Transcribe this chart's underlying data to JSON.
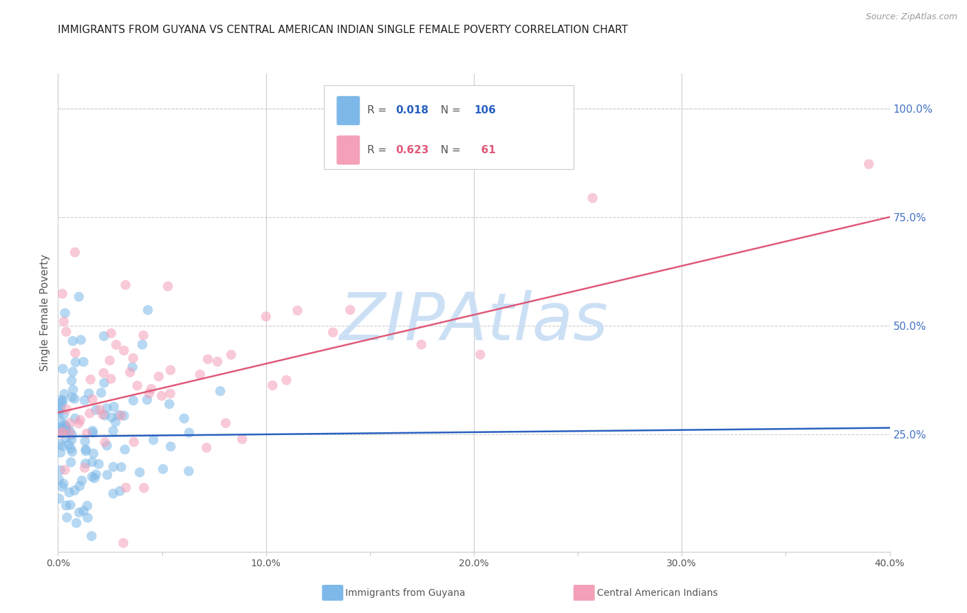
{
  "title": "IMMIGRANTS FROM GUYANA VS CENTRAL AMERICAN INDIAN SINGLE FEMALE POVERTY CORRELATION CHART",
  "source": "Source: ZipAtlas.com",
  "ylabel": "Single Female Poverty",
  "xlim": [
    0.0,
    0.4
  ],
  "ylim": [
    -0.02,
    1.08
  ],
  "xtick_labels": [
    "0.0%",
    "",
    "10.0%",
    "",
    "20.0%",
    "",
    "30.0%",
    "",
    "40.0%"
  ],
  "xtick_vals": [
    0.0,
    0.05,
    0.1,
    0.15,
    0.2,
    0.25,
    0.3,
    0.35,
    0.4
  ],
  "ytick_labels_right": [
    "100.0%",
    "75.0%",
    "50.0%",
    "25.0%"
  ],
  "ytick_vals_right": [
    1.0,
    0.75,
    0.5,
    0.25
  ],
  "blue_R": 0.018,
  "blue_N": 106,
  "pink_R": 0.623,
  "pink_N": 61,
  "blue_color": "#7db8e8",
  "pink_color": "#f4a0b8",
  "blue_line_color": "#2860c0",
  "pink_line_color": "#e05878",
  "watermark_text": "ZIPAtlas",
  "watermark_color": "#cce0f5",
  "legend_label_blue": "Immigrants from Guyana",
  "legend_label_pink": "Central American Indians",
  "background_color": "#ffffff",
  "grid_color": "#cccccc",
  "title_fontsize": 11,
  "axis_label_fontsize": 11,
  "tick_fontsize": 10,
  "right_tick_color": "#4472c4",
  "blue_line_intercept": 0.245,
  "blue_line_slope": 0.05,
  "pink_line_intercept": 0.3,
  "pink_line_slope": 1.125
}
